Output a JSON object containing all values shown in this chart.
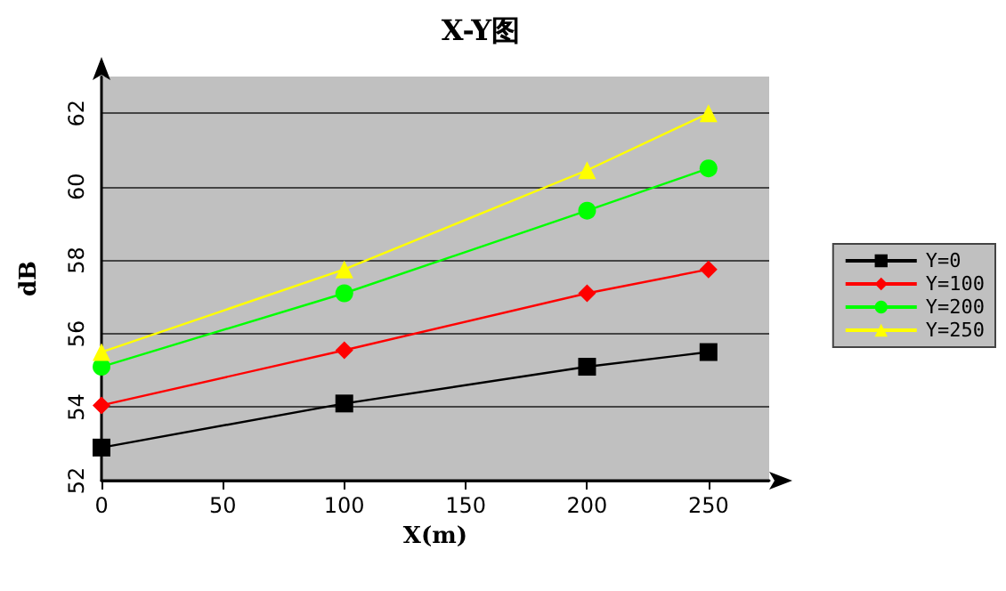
{
  "chart_data": {
    "type": "line",
    "title": "X-Y图",
    "xlabel": "X(m)",
    "ylabel": "dB",
    "x": [
      0,
      100,
      200,
      250
    ],
    "series": [
      {
        "name": "Y=0",
        "color": "#000000",
        "marker": "square",
        "values": [
          52.9,
          54.1,
          55.1,
          55.5
        ]
      },
      {
        "name": "Y=100",
        "color": "#ff0000",
        "marker": "diamond",
        "values": [
          54.05,
          55.55,
          57.1,
          57.75
        ]
      },
      {
        "name": "Y=200",
        "color": "#00ff00",
        "marker": "circle",
        "values": [
          55.1,
          57.1,
          59.35,
          60.5
        ]
      },
      {
        "name": "Y=250",
        "color": "#ffff00",
        "marker": "triangle",
        "values": [
          55.5,
          57.75,
          60.45,
          62.0
        ]
      }
    ],
    "xlim": [
      0,
      275
    ],
    "xticks": [
      0,
      50,
      100,
      150,
      200,
      250
    ],
    "ylim": [
      52,
      63
    ],
    "yticks": [
      52,
      54,
      56,
      58,
      60,
      62
    ],
    "grid": "y",
    "legend": "right"
  }
}
